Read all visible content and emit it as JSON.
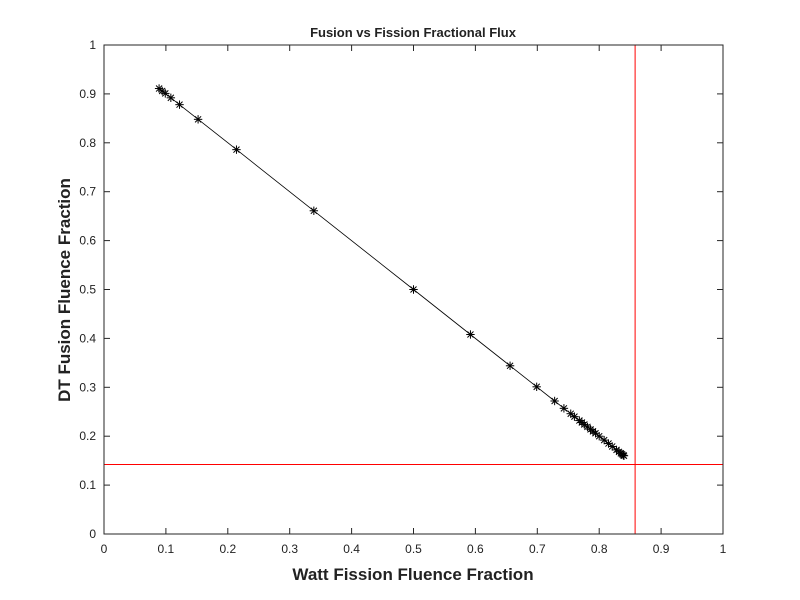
{
  "chart_data": {
    "type": "scatter",
    "title": "Fusion vs Fission Fractional Flux",
    "xlabel": "Watt Fission Fluence Fraction",
    "ylabel": "DT Fusion Fluence Fraction",
    "xlim": [
      0,
      1
    ],
    "ylim": [
      0,
      1
    ],
    "xticks": [
      0,
      0.1,
      0.2,
      0.3,
      0.4,
      0.5,
      0.6,
      0.7,
      0.8,
      0.9,
      1
    ],
    "yticks": [
      0,
      0.1,
      0.2,
      0.3,
      0.4,
      0.5,
      0.6,
      0.7,
      0.8,
      0.9,
      1
    ],
    "xtick_labels": [
      "0",
      "0.1",
      "0.2",
      "0.3",
      "0.4",
      "0.5",
      "0.6",
      "0.7",
      "0.8",
      "0.9",
      "1"
    ],
    "ytick_labels": [
      "0",
      "0.1",
      "0.2",
      "0.3",
      "0.4",
      "0.5",
      "0.6",
      "0.7",
      "0.8",
      "0.9",
      "1"
    ],
    "grid": false,
    "series": [
      {
        "marker": "asterisk",
        "line": "solid",
        "color": "#000000",
        "x": [
          0.089,
          0.094,
          0.099,
          0.108,
          0.122,
          0.152,
          0.214,
          0.339,
          0.5,
          0.592,
          0.656,
          0.699,
          0.728,
          0.743,
          0.754,
          0.76,
          0.768,
          0.772,
          0.776,
          0.781,
          0.786,
          0.79,
          0.794,
          0.8,
          0.808,
          0.815,
          0.821,
          0.828,
          0.832,
          0.835,
          0.837,
          0.839,
          0.84
        ],
        "y": [
          0.911,
          0.906,
          0.901,
          0.892,
          0.878,
          0.848,
          0.786,
          0.661,
          0.5,
          0.408,
          0.344,
          0.301,
          0.272,
          0.257,
          0.246,
          0.24,
          0.232,
          0.228,
          0.224,
          0.219,
          0.214,
          0.21,
          0.206,
          0.2,
          0.192,
          0.185,
          0.179,
          0.172,
          0.168,
          0.165,
          0.163,
          0.161,
          0.16
        ]
      }
    ],
    "reference_lines": [
      {
        "orientation": "vertical",
        "value": 0.858,
        "color": "#ff0000"
      },
      {
        "orientation": "horizontal",
        "value": 0.142,
        "color": "#ff0000"
      }
    ]
  }
}
